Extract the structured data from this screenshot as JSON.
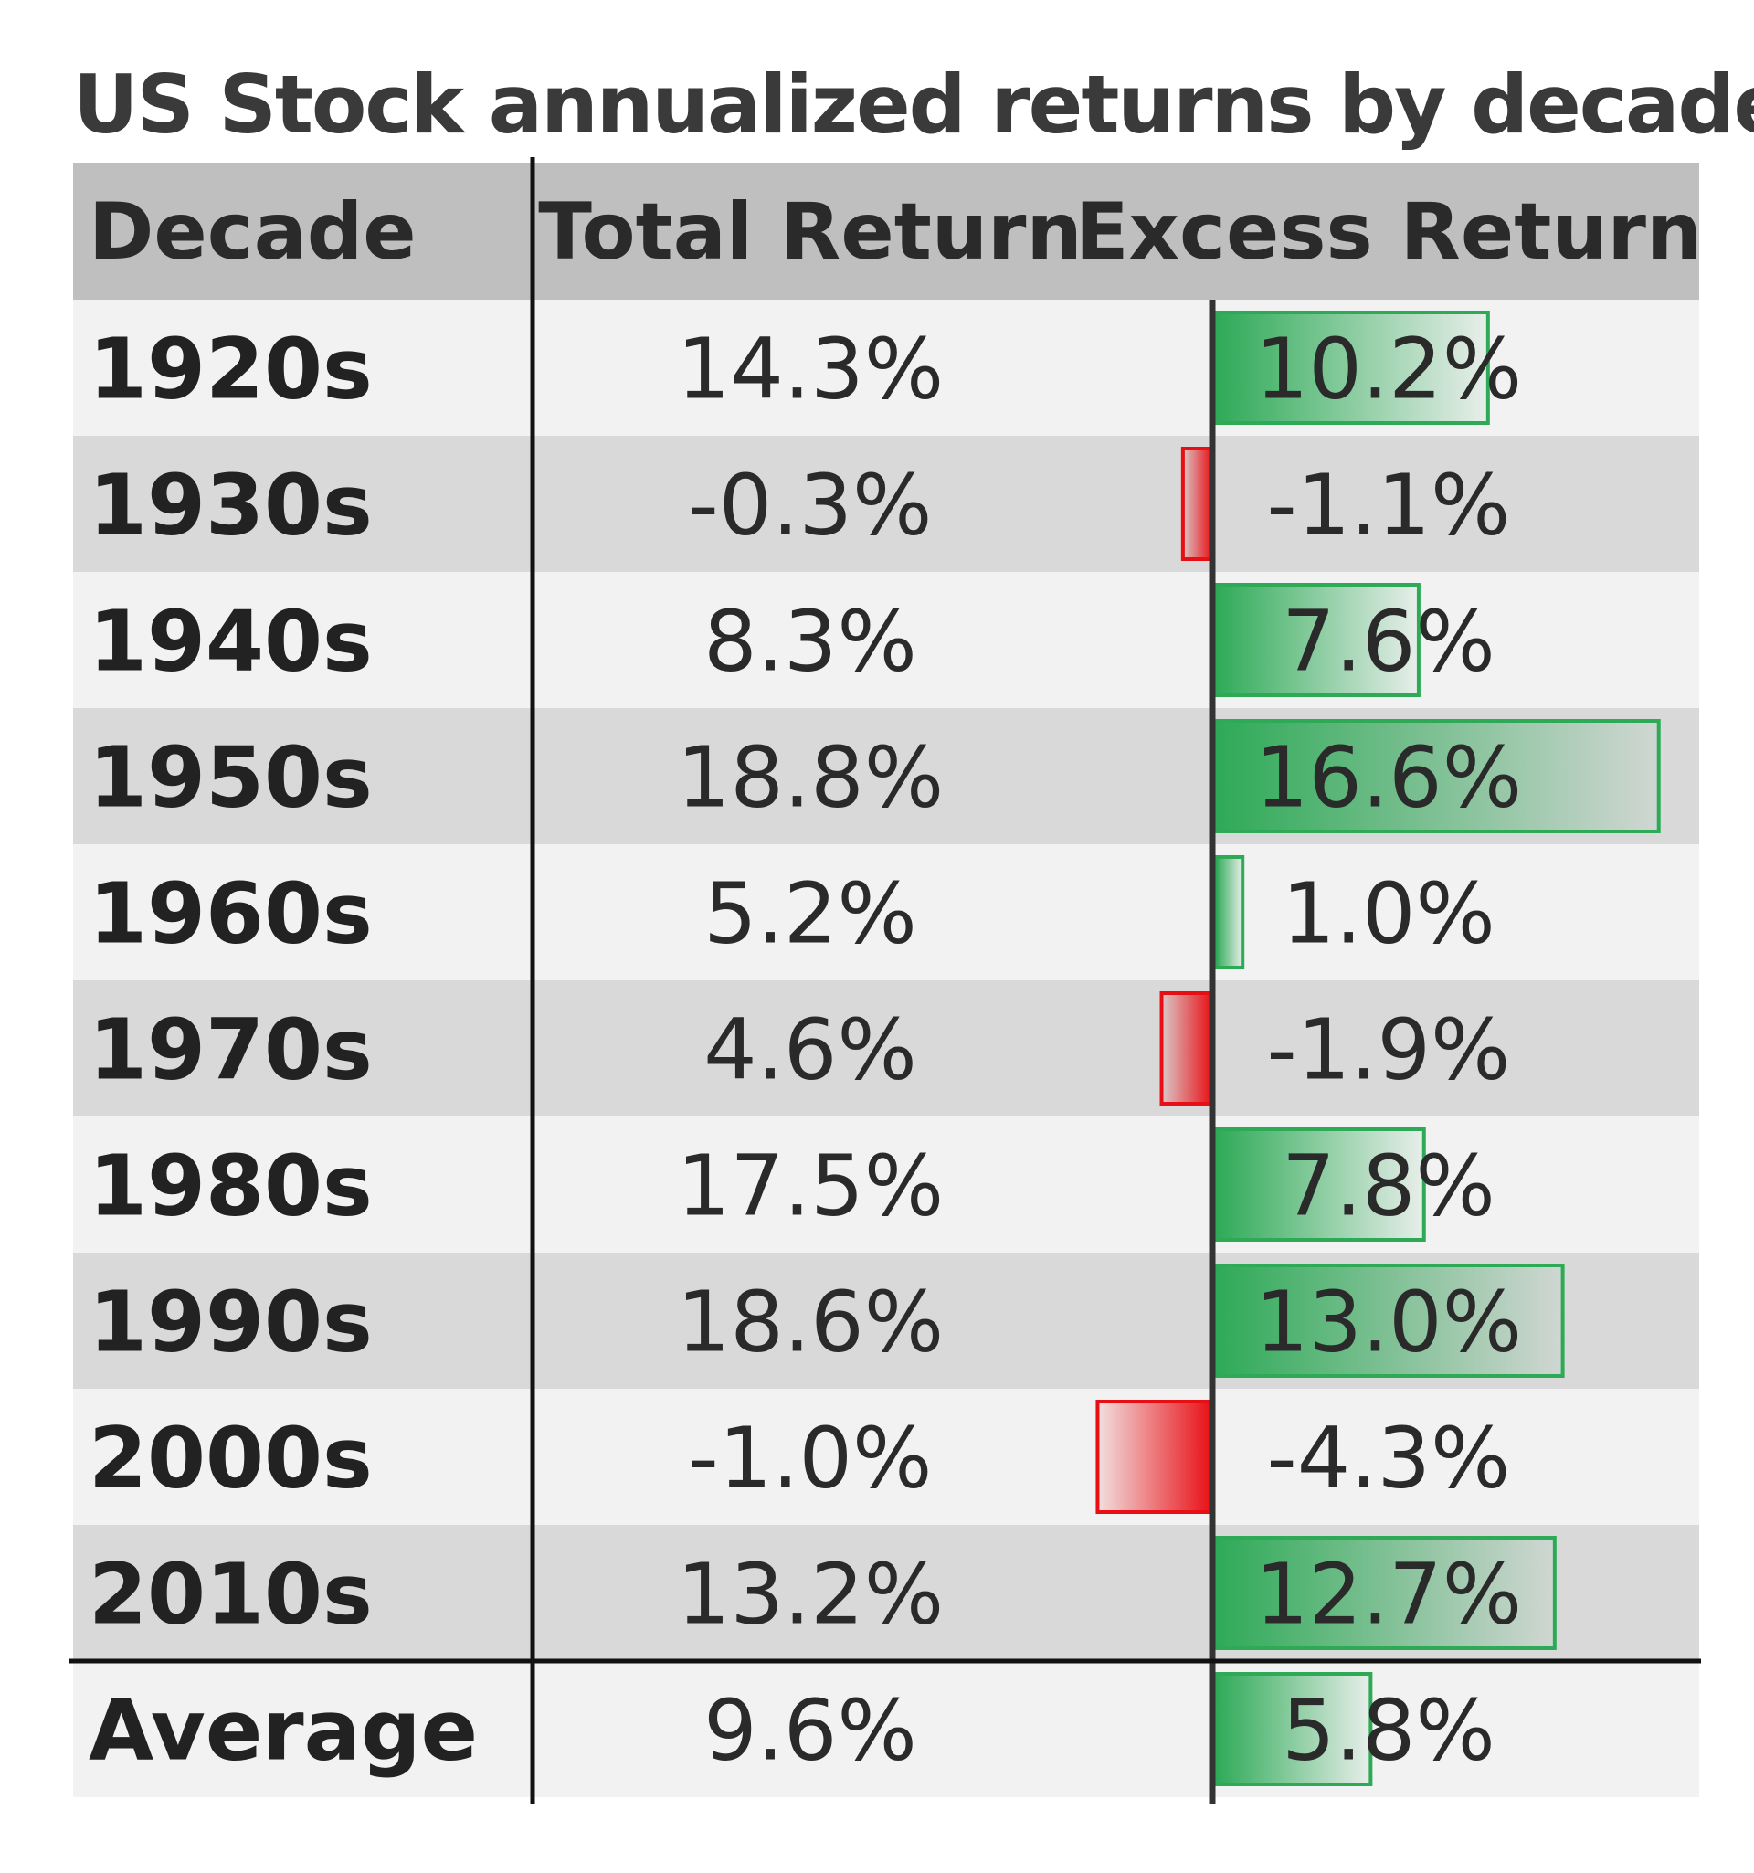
{
  "title": "US Stock annualized returns by decade",
  "colors": {
    "positive": "#2eaa57",
    "negative": "#e80f14",
    "row_light": "#f2f2f2",
    "row_dark": "#d9d9d9",
    "header_bg": "#bfbfbf",
    "text": "#222222"
  },
  "chart_data": {
    "type": "table",
    "columns": [
      "Decade",
      "Total Return",
      "Excess Return"
    ],
    "bar_column": "Excess Return",
    "bar_domain": [
      -4.3,
      16.6
    ],
    "rows": [
      {
        "decade": "1920s",
        "total": "14.3%",
        "excess": "10.2%",
        "excess_value": 10.2
      },
      {
        "decade": "1930s",
        "total": "-0.3%",
        "excess": "-1.1%",
        "excess_value": -1.1
      },
      {
        "decade": "1940s",
        "total": "8.3%",
        "excess": "7.6%",
        "excess_value": 7.6
      },
      {
        "decade": "1950s",
        "total": "18.8%",
        "excess": "16.6%",
        "excess_value": 16.6
      },
      {
        "decade": "1960s",
        "total": "5.2%",
        "excess": "1.0%",
        "excess_value": 1.0
      },
      {
        "decade": "1970s",
        "total": "4.6%",
        "excess": "-1.9%",
        "excess_value": -1.9
      },
      {
        "decade": "1980s",
        "total": "17.5%",
        "excess": "7.8%",
        "excess_value": 7.8
      },
      {
        "decade": "1990s",
        "total": "18.6%",
        "excess": "13.0%",
        "excess_value": 13.0
      },
      {
        "decade": "2000s",
        "total": "-1.0%",
        "excess": "-4.3%",
        "excess_value": -4.3
      },
      {
        "decade": "2010s",
        "total": "13.2%",
        "excess": "12.7%",
        "excess_value": 12.7
      }
    ],
    "average": {
      "decade": "Average",
      "total": "9.6%",
      "excess": "5.8%",
      "excess_value": 5.8
    }
  }
}
